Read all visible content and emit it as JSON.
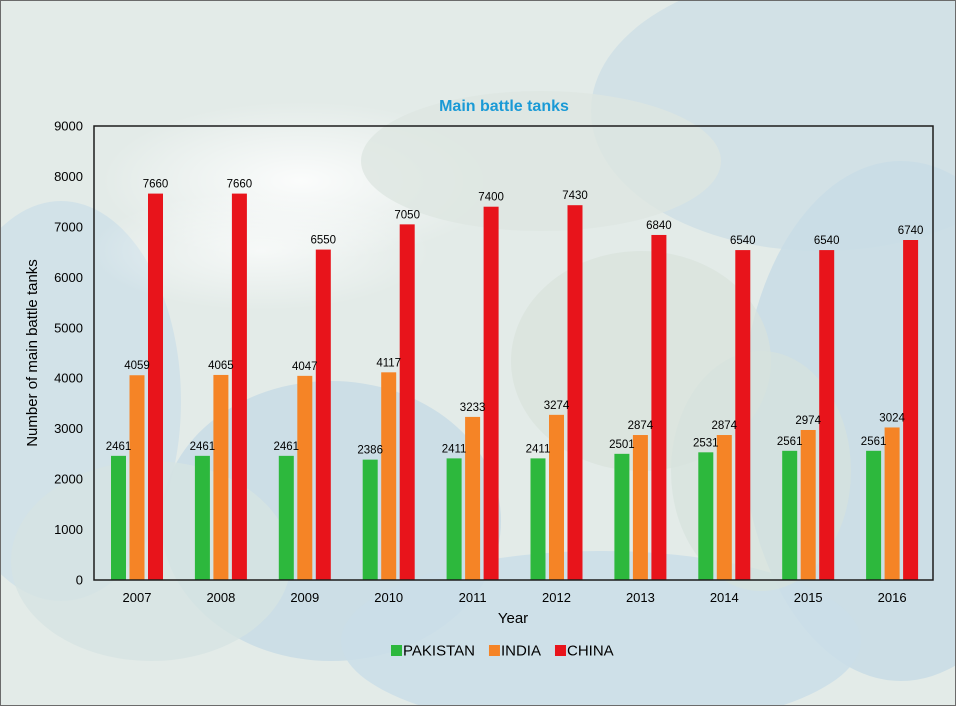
{
  "colors": {
    "pakistan": "#2db83d",
    "india": "#f58426",
    "china": "#e8141b",
    "title": "#1a9ad6",
    "plot_border": "#1c1c1c"
  },
  "chart_data": {
    "type": "bar",
    "title": "Main battle tanks",
    "xlabel": "Year",
    "ylabel": "Number of main battle tanks",
    "ylim": [
      0,
      9000
    ],
    "yticks": [
      0,
      1000,
      2000,
      3000,
      4000,
      5000,
      6000,
      7000,
      8000,
      9000
    ],
    "grid": false,
    "legend_position": "bottom-center",
    "categories": [
      "2007",
      "2008",
      "2009",
      "2010",
      "2011",
      "2012",
      "2013",
      "2014",
      "2015",
      "2016"
    ],
    "series": [
      {
        "name": "PAKISTAN",
        "color": "#2db83d",
        "values": [
          2461,
          2461,
          2461,
          2386,
          2411,
          2411,
          2501,
          2531,
          2561,
          2561
        ]
      },
      {
        "name": "INDIA",
        "color": "#f58426",
        "values": [
          4059,
          4065,
          4047,
          4117,
          3233,
          3274,
          2874,
          2874,
          2974,
          3024
        ]
      },
      {
        "name": "CHINA",
        "color": "#e8141b",
        "values": [
          7660,
          7660,
          6550,
          7050,
          7400,
          7430,
          6840,
          6540,
          6540,
          6740
        ]
      }
    ]
  }
}
